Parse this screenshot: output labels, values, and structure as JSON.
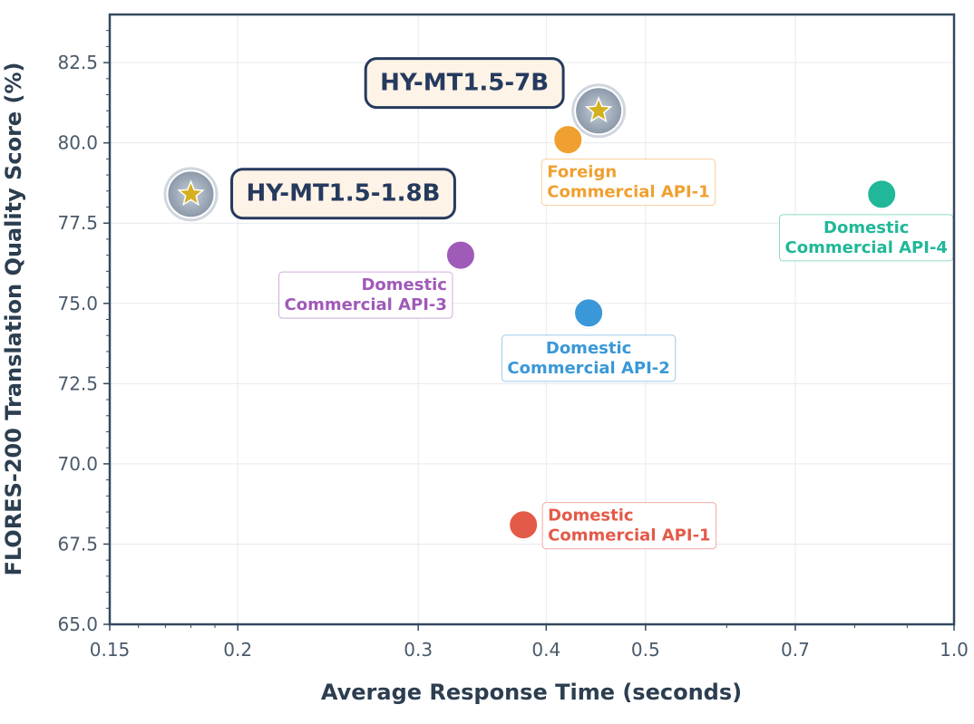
{
  "chart_data": {
    "type": "scatter",
    "title": "",
    "xlabel": "Average Response Time (seconds)",
    "ylabel": "FLORES-200 Translation Quality Score (%)",
    "xscale": "log",
    "xlim": [
      0.15,
      1.0
    ],
    "ylim": [
      65.0,
      84.0
    ],
    "xticks": [
      0.15,
      0.2,
      0.3,
      0.4,
      0.5,
      0.7,
      1.0
    ],
    "xtick_labels": [
      "0.15",
      "0.2",
      "0.3",
      "0.4",
      "0.5",
      "0.7",
      "1.0"
    ],
    "yticks": [
      65.0,
      67.5,
      70.0,
      72.5,
      75.0,
      77.5,
      80.0,
      82.5
    ],
    "ytick_labels": [
      "65.0",
      "67.5",
      "70.0",
      "72.5",
      "75.0",
      "77.5",
      "80.0",
      "82.5"
    ],
    "grid": true,
    "points": [
      {
        "key": "hy-mt15-7b",
        "label": "HY-MT1.5-7B",
        "x": 0.45,
        "y": 81.0,
        "marker": "star",
        "color": "#d4b020",
        "highlight": true
      },
      {
        "key": "hy-mt15-18b",
        "label": "HY-MT1.5-1.8B",
        "x": 0.18,
        "y": 78.4,
        "marker": "star",
        "color": "#d4b020",
        "highlight": true
      },
      {
        "key": "foreign-api-1",
        "label": "Foreign\nCommercial API-1",
        "x": 0.42,
        "y": 80.1,
        "marker": "circle",
        "color": "#f0a030"
      },
      {
        "key": "domestic-api-4",
        "label": "Domestic\nCommercial API-4",
        "x": 0.85,
        "y": 78.4,
        "marker": "circle",
        "color": "#20b898"
      },
      {
        "key": "domestic-api-3",
        "label": "Domestic\nCommercial API-3",
        "x": 0.33,
        "y": 76.5,
        "marker": "circle",
        "color": "#a05ab8"
      },
      {
        "key": "domestic-api-2",
        "label": "Domestic\nCommercial API-2",
        "x": 0.44,
        "y": 74.7,
        "marker": "circle",
        "color": "#3a98d8"
      },
      {
        "key": "domestic-api-1",
        "label": "Domestic\nCommercial API-1",
        "x": 0.38,
        "y": 68.1,
        "marker": "circle",
        "color": "#e45a48"
      }
    ]
  }
}
